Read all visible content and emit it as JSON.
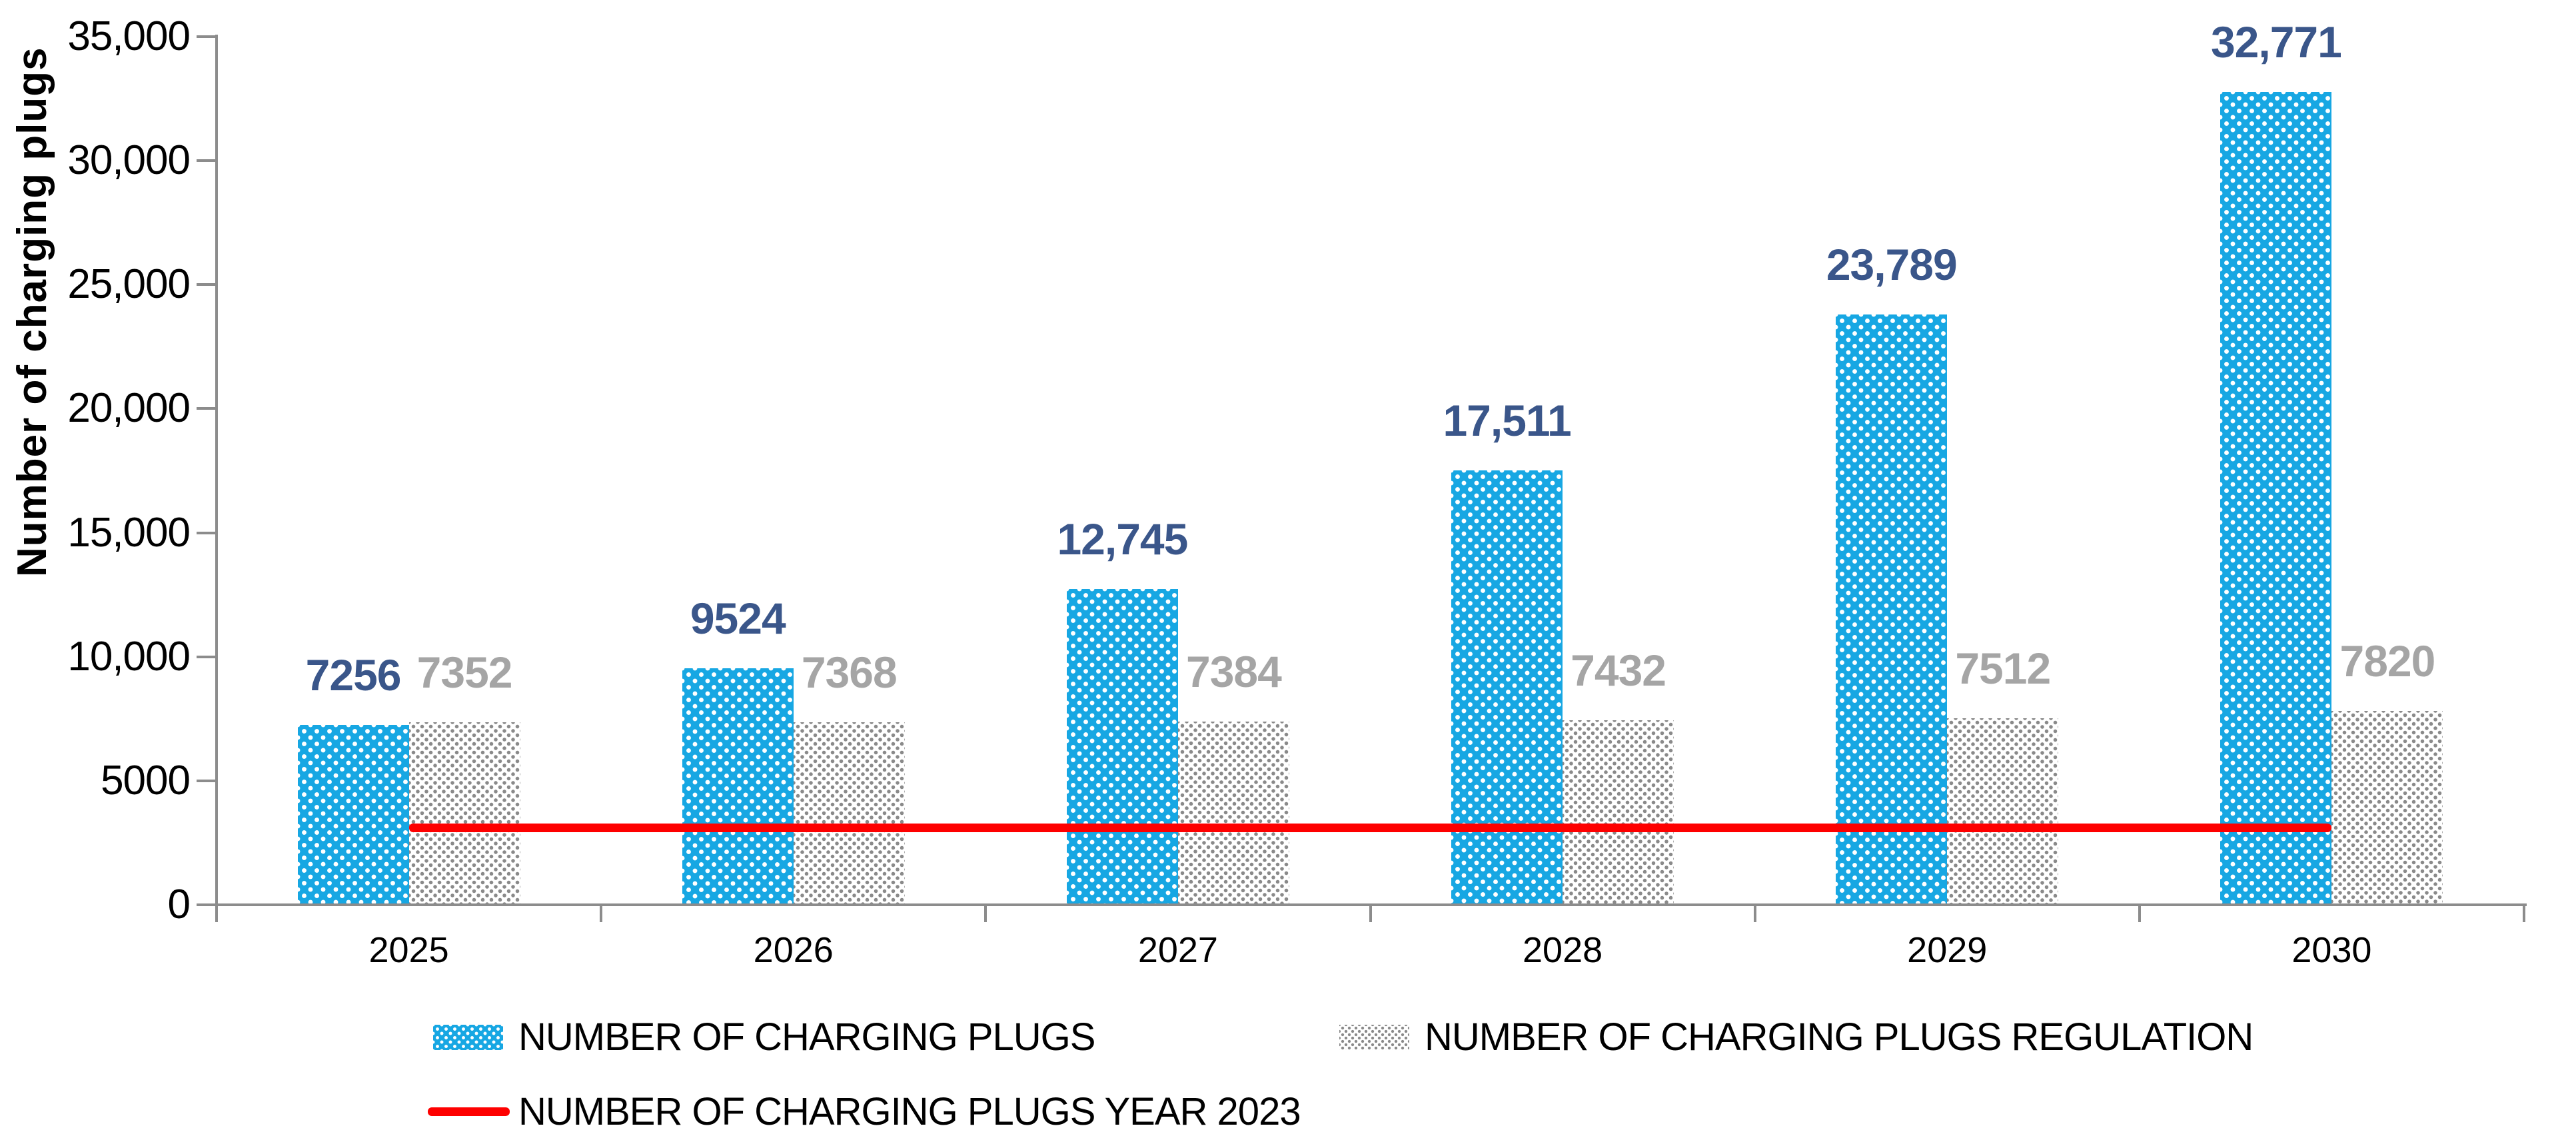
{
  "chart_data": {
    "type": "bar",
    "title": "",
    "ylabel": "Number of charging plugs",
    "categories": [
      "2025",
      "2026",
      "2027",
      "2028",
      "2029",
      "2030"
    ],
    "series": [
      {
        "name": "NUMBER OF CHARGING PLUGS",
        "values": [
          7256,
          9524,
          12745,
          17511,
          23789,
          32771
        ],
        "data_labels": [
          "7256",
          "9524",
          "12,745",
          "17,511",
          "23,789",
          "32,771"
        ],
        "color": "#17A7E3",
        "pattern": "white-dots-on-blue",
        "label_color": "#3A568A"
      },
      {
        "name": "NUMBER OF CHARGING PLUGS REGULATION",
        "values": [
          7352,
          7368,
          7384,
          7432,
          7512,
          7820
        ],
        "data_labels": [
          "7352",
          "7368",
          "7384",
          "7432",
          "7512",
          "7820"
        ],
        "color": "#FFFFFF",
        "pattern": "gray-dots-on-white",
        "label_color": "#A5A5A5"
      }
    ],
    "line_series": {
      "name": "NUMBER OF CHARGING PLUGS YEAR 2023",
      "value": 3090,
      "color": "#FE0000"
    },
    "y_ticks": [
      {
        "value": 0,
        "label": "0"
      },
      {
        "value": 5000,
        "label": "5000"
      },
      {
        "value": 10000,
        "label": "10,000"
      },
      {
        "value": 15000,
        "label": "15,000"
      },
      {
        "value": 20000,
        "label": "20,000"
      },
      {
        "value": 25000,
        "label": "25,000"
      },
      {
        "value": 30000,
        "label": "30,000"
      },
      {
        "value": 35000,
        "label": "35,000"
      }
    ],
    "ylim": [
      0,
      35000
    ],
    "grid": false,
    "legend_position": "bottom-left",
    "colors": {
      "bar_blue": "#17A7E3",
      "bar_gray_dots": "#8A8A8A",
      "line_red": "#FE0000",
      "blue_label": "#3A568A",
      "gray_label": "#A5A5A5",
      "axis": "#8C8C8C",
      "text": "#000000"
    }
  }
}
